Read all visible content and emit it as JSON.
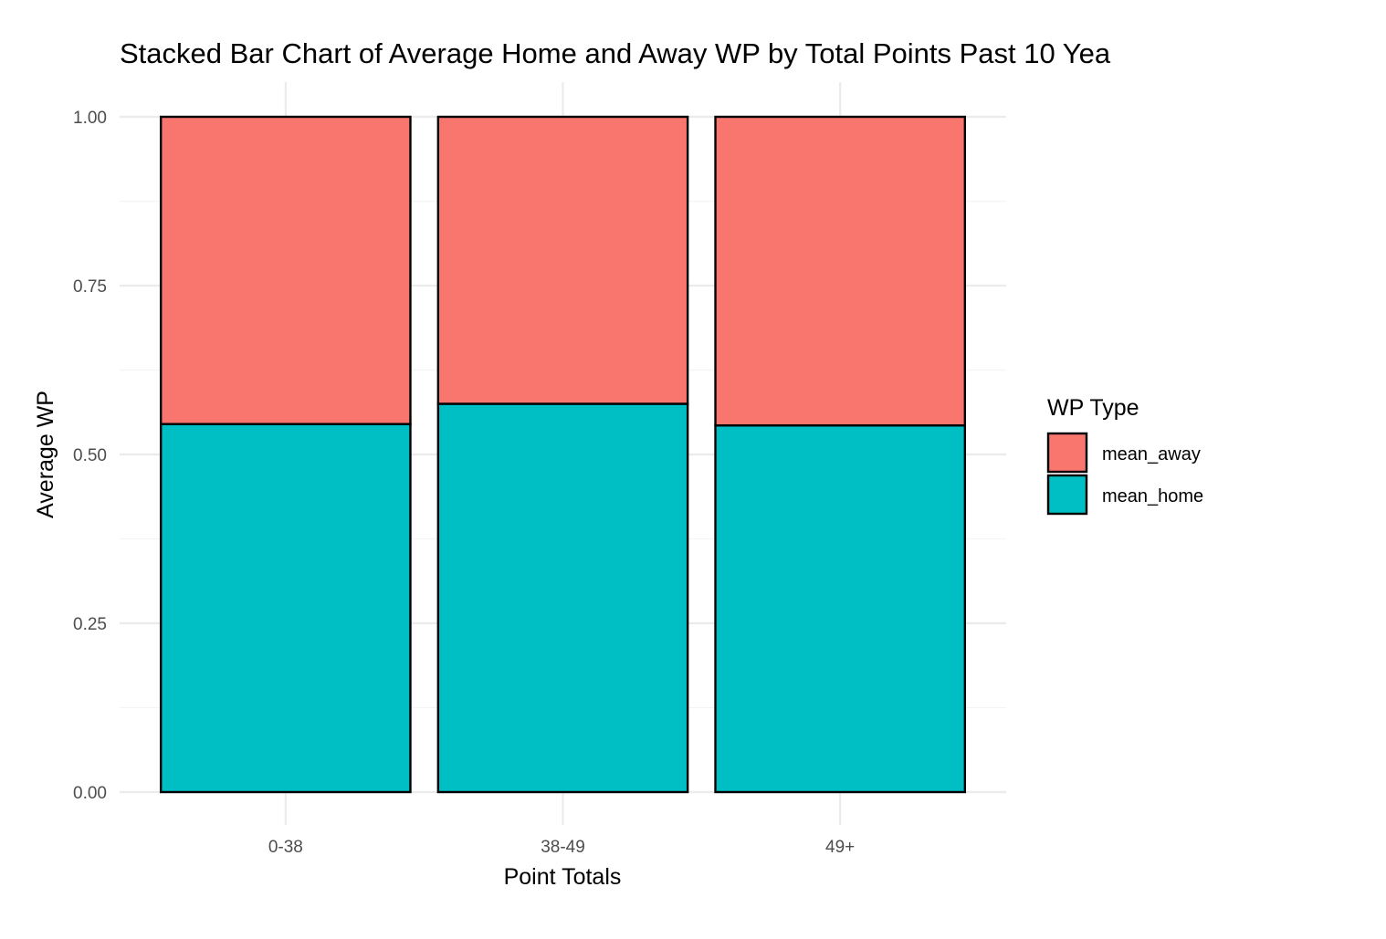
{
  "chart_data": {
    "type": "bar",
    "stacked": true,
    "title": "Stacked Bar Chart of Average Home and Away WP by Total Points Past 10 Yea",
    "xlabel": "Point Totals",
    "ylabel": "Average WP",
    "categories": [
      "0-38",
      "38-49",
      "49+"
    ],
    "series": [
      {
        "name": "mean_home",
        "values": [
          0.545,
          0.575,
          0.543
        ],
        "color": "#00BFC4"
      },
      {
        "name": "mean_away",
        "values": [
          0.455,
          0.425,
          0.457
        ],
        "color": "#F8766D"
      }
    ],
    "ylim": [
      0,
      1
    ],
    "yticks": [
      "0.00",
      "0.25",
      "0.50",
      "0.75",
      "1.00"
    ],
    "grid": true,
    "legend": {
      "title": "WP Type",
      "placement": "right",
      "items": [
        "mean_away",
        "mean_home"
      ]
    }
  }
}
